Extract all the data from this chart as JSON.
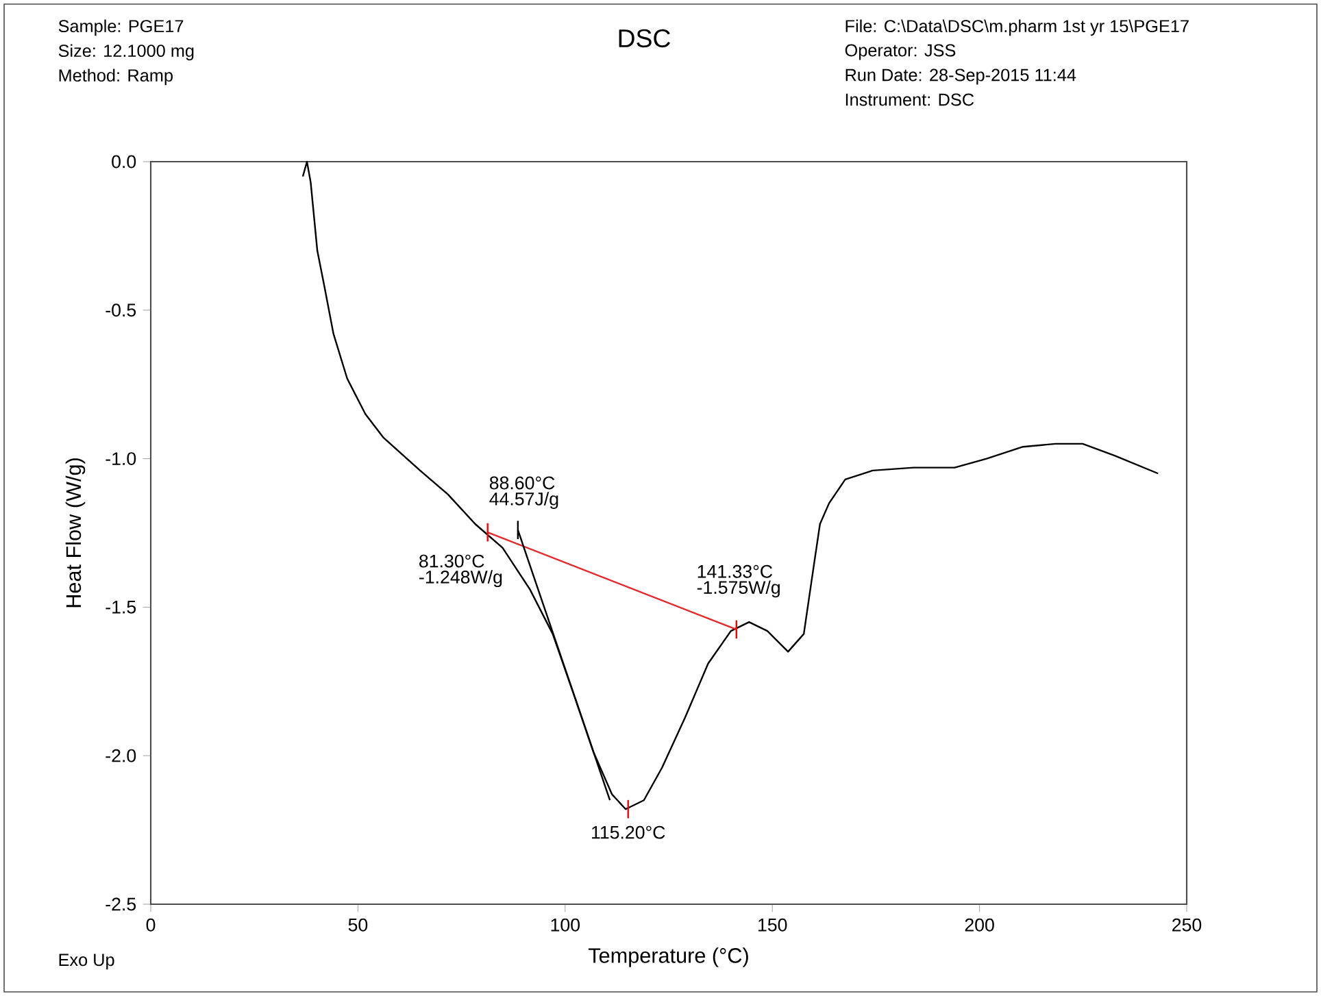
{
  "chart_data": {
    "type": "line",
    "title": "DSC",
    "xlabel": "Temperature (°C)",
    "ylabel": "Heat Flow (W/g)",
    "xlim": [
      0,
      250
    ],
    "xticks": [
      0,
      50,
      100,
      150,
      200,
      250
    ],
    "ylim": [
      -2.5,
      0
    ],
    "yticks": [
      {
        "value": -2.5,
        "label": "-2.5"
      },
      {
        "value": -2.0,
        "label": "-2.0"
      },
      {
        "value": -1.5,
        "label": "-1.5"
      },
      {
        "value": -1.0,
        "label": "-1.0"
      },
      {
        "value": -0.5,
        "label": "-0.5"
      },
      {
        "value": 0,
        "label": "0.0"
      }
    ],
    "grid": false,
    "marker": "none",
    "line_style": "solid",
    "series": [
      {
        "color": "#000000",
        "x": [
          36.7,
          37.7,
          38.6,
          40.2,
          41.9,
          44.1,
          47.4,
          51.8,
          56.2,
          65.0,
          71.7,
          78.3,
          84.9,
          91.5,
          97.0,
          102.5,
          106.9,
          111.3,
          114.6,
          119.0,
          123.4,
          129.0,
          134.5,
          140.0,
          144.4,
          148.8,
          153.8,
          157.6,
          159.8,
          161.5,
          163.7,
          167.6,
          174.2,
          184.1,
          194.0,
          201.7,
          210.5,
          218.3,
          224.9,
          232.6,
          243.1
        ],
        "values": [
          -0.05,
          0.0,
          -0.07,
          -0.3,
          -0.42,
          -0.58,
          -0.73,
          -0.85,
          -0.93,
          -1.04,
          -1.12,
          -1.22,
          -1.3,
          -1.44,
          -1.59,
          -1.81,
          -1.99,
          -2.13,
          -2.18,
          -2.15,
          -2.04,
          -1.87,
          -1.69,
          -1.58,
          -1.55,
          -1.58,
          -1.65,
          -1.59,
          -1.38,
          -1.22,
          -1.15,
          -1.07,
          -1.04,
          -1.03,
          -1.03,
          -1.0,
          -0.96,
          -0.95,
          -0.95,
          -0.99,
          -1.05
        ]
      },
      {
        "color": "#e8262a",
        "x": [
          81.3,
          141.33
        ],
        "values": [
          -1.248,
          -1.575
        ]
      },
      {
        "color": "#000000",
        "x": [
          88.6,
          110.8
        ],
        "values": [
          -1.24,
          -2.15
        ]
      }
    ],
    "annotations": [
      "Sample: PGE17",
      "Size:  12.1000 mg",
      "Method: Ramp",
      "File: C:\\Data\\DSC\\m.pharm 1st yr 15\\PGE17",
      "Operator: JSS",
      "Run Date: 28-Sep-2015 11:44",
      "Instrument: DSC",
      "Exo Up",
      {
        "text": "88.60°C",
        "x": 88.6,
        "y": -1.24
      },
      "44.57J/g",
      {
        "text": "81.30°C",
        "x": 81.3,
        "y": -1.248
      },
      "-1.248W/g",
      {
        "text": "141.33°C",
        "x": 141.33,
        "y": -1.575
      },
      "-1.575W/g",
      {
        "text": "115.20°C",
        "x": 115.2,
        "y": -2.18
      }
    ]
  }
}
